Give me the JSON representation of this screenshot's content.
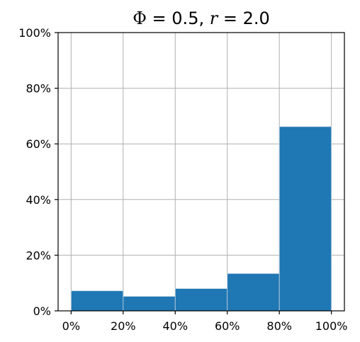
{
  "chart_data": {
    "type": "bar",
    "title": {
      "phi_symbol": "Φ",
      "phi_eq": " = 0.5, ",
      "r_symbol": "r",
      "r_eq": " = 2.0"
    },
    "xlabel": "",
    "ylabel": "",
    "bins": [
      {
        "start": 0.0,
        "end": 0.2,
        "value": 0.072
      },
      {
        "start": 0.2,
        "end": 0.4,
        "value": 0.052
      },
      {
        "start": 0.4,
        "end": 0.6,
        "value": 0.08
      },
      {
        "start": 0.6,
        "end": 0.8,
        "value": 0.134
      },
      {
        "start": 0.8,
        "end": 1.0,
        "value": 0.662
      }
    ],
    "xlim": [
      -0.05,
      1.05
    ],
    "ylim": [
      0,
      1.0
    ],
    "x_ticks": [
      {
        "value": 0.0,
        "label": "0%"
      },
      {
        "value": 0.2,
        "label": "20%"
      },
      {
        "value": 0.4,
        "label": "40%"
      },
      {
        "value": 0.6,
        "label": "60%"
      },
      {
        "value": 0.8,
        "label": "80%"
      },
      {
        "value": 1.0,
        "label": "100%"
      }
    ],
    "y_ticks": [
      {
        "value": 0.0,
        "label": "0%"
      },
      {
        "value": 0.2,
        "label": "20%"
      },
      {
        "value": 0.4,
        "label": "40%"
      },
      {
        "value": 0.6,
        "label": "60%"
      },
      {
        "value": 0.8,
        "label": "80%"
      },
      {
        "value": 1.0,
        "label": "100%"
      }
    ],
    "grid": true,
    "bar_color": "#1f77b4",
    "bar_edge_color": "#c8d6e2",
    "grid_color": "#b0b0b0"
  }
}
